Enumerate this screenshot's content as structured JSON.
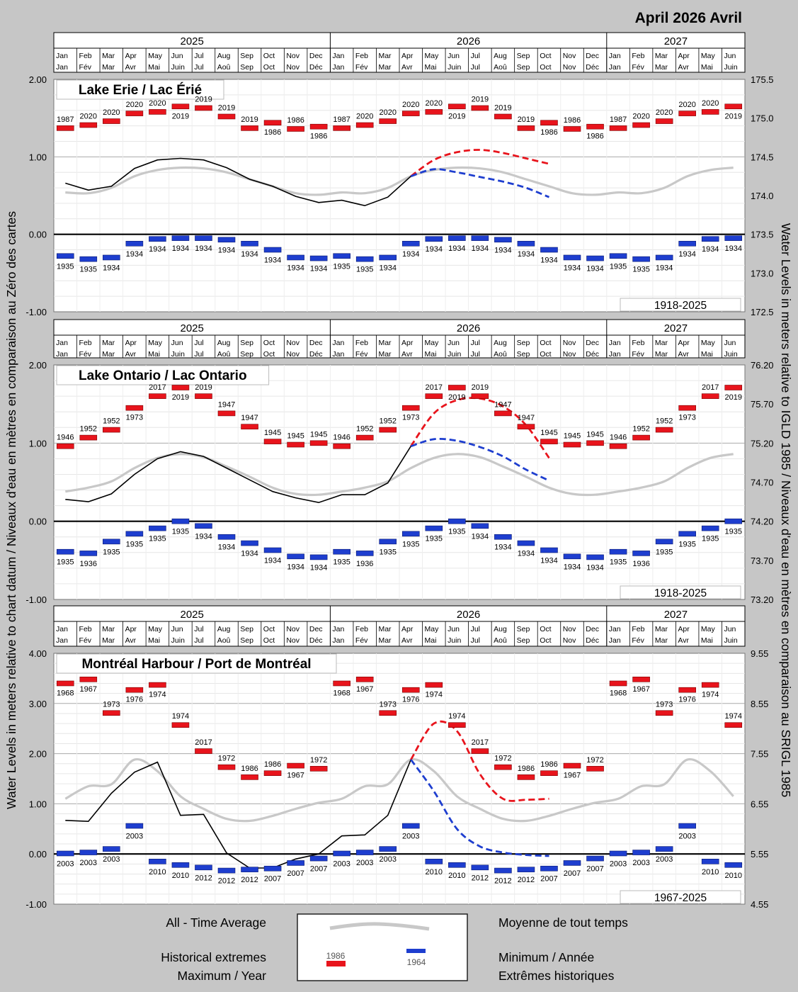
{
  "header": {
    "title": "April 2026 Avril"
  },
  "axis_titles": {
    "left": "Water Levels in meters relative to chart datum / Niveaux d'eau en mètres en comparaison au Zéro des cartes",
    "right": "Water Levels in meters relative to IGLD 1985 / Niveaux d'eau en mètres en comparaison au SRIGL 1985"
  },
  "timeline": {
    "years": [
      {
        "label": "2025",
        "months": 12
      },
      {
        "label": "2026",
        "months": 12
      },
      {
        "label": "2027",
        "months": 6
      }
    ],
    "months": [
      [
        "Jan",
        "Jan"
      ],
      [
        "Feb",
        "Fév"
      ],
      [
        "Mar",
        "Mar"
      ],
      [
        "Apr",
        "Avr"
      ],
      [
        "May",
        "Mai"
      ],
      [
        "Jun",
        "Juin"
      ],
      [
        "Jul",
        "Jul"
      ],
      [
        "Aug",
        "Aoû"
      ],
      [
        "Sep",
        "Sep"
      ],
      [
        "Oct",
        "Oct"
      ],
      [
        "Nov",
        "Nov"
      ],
      [
        "Dec",
        "Déc"
      ],
      [
        "Jan",
        "Jan"
      ],
      [
        "Feb",
        "Fév"
      ],
      [
        "Mar",
        "Mar"
      ],
      [
        "Apr",
        "Avr"
      ],
      [
        "May",
        "Mai"
      ],
      [
        "Jun",
        "Juin"
      ],
      [
        "Jul",
        "Jul"
      ],
      [
        "Aug",
        "Aoû"
      ],
      [
        "Sep",
        "Sep"
      ],
      [
        "Oct",
        "Oct"
      ],
      [
        "Nov",
        "Nov"
      ],
      [
        "Dec",
        "Déc"
      ],
      [
        "Jan",
        "Jan"
      ],
      [
        "Feb",
        "Fév"
      ],
      [
        "Mar",
        "Mar"
      ],
      [
        "Apr",
        "Avr"
      ],
      [
        "May",
        "Mai"
      ],
      [
        "Jun",
        "Juin"
      ]
    ]
  },
  "legend": {
    "avg_en": "All - Time Average",
    "avg_fr": "Moyenne de tout temps",
    "hist_en": "Historical extremes",
    "max_en": "Maximum / Year",
    "min_fr": "Minimum / Année",
    "hist_fr": "Extrêmes historiques",
    "sample_max_year": "1986",
    "sample_min_year": "1964",
    "colors": {
      "max": "#e8141c",
      "min": "#1e3ecf",
      "average": "#c8c8c8",
      "observed": "#000000"
    }
  },
  "chart_data": [
    {
      "type": "line",
      "title": "Lake Erie / Lac Érié",
      "period": "1918-2025",
      "ylim": [
        -1,
        2
      ],
      "yticks": [
        "2.00",
        "1.00",
        "0.00",
        "-1.00"
      ],
      "right_ylim": [
        172.5,
        175.5
      ],
      "right_yticks": [
        "175.5",
        "175.0",
        "174.5",
        "174.0",
        "173.5",
        "173.0",
        "172.5"
      ],
      "max_values": [
        1.37,
        1.41,
        1.46,
        1.56,
        1.58,
        1.65,
        1.63,
        1.52,
        1.37,
        1.44,
        1.36,
        1.39
      ],
      "max_years": [
        "1987",
        "2020",
        "2020",
        "2020",
        "2020",
        "2019",
        "2019",
        "2019",
        "2019",
        "1986",
        "1986",
        "1986"
      ],
      "min_values": [
        -0.28,
        -0.32,
        -0.3,
        -0.12,
        -0.06,
        -0.05,
        -0.05,
        -0.07,
        -0.12,
        -0.2,
        -0.3,
        -0.31
      ],
      "min_years": [
        "1935",
        "1935",
        "1934",
        "1934",
        "1934",
        "1934",
        "1934",
        "1934",
        "1934",
        "1934",
        "1934",
        "1934"
      ],
      "average": [
        0.54,
        0.53,
        0.6,
        0.75,
        0.83,
        0.86,
        0.85,
        0.8,
        0.71,
        0.62,
        0.53,
        0.51
      ],
      "observed": [
        0.66,
        0.57,
        0.62,
        0.85,
        0.96,
        0.98,
        0.96,
        0.86,
        0.71,
        0.62,
        0.49,
        0.41,
        0.44,
        0.37,
        0.48,
        0.75
      ],
      "forecast_high": [
        0.75,
        0.96,
        1.06,
        1.09,
        1.05,
        0.98,
        0.91
      ],
      "forecast_low": [
        0.75,
        0.84,
        0.8,
        0.74,
        0.68,
        0.6,
        0.48
      ]
    },
    {
      "type": "line",
      "title": "Lake Ontario / Lac Ontario",
      "period": "1918-2025",
      "ylim": [
        -1,
        2
      ],
      "yticks": [
        "2.00",
        "1.00",
        "0.00",
        "-1.00"
      ],
      "right_ylim": [
        73.2,
        76.2
      ],
      "right_yticks": [
        "76.20",
        "75.70",
        "75.20",
        "74.70",
        "74.20",
        "73.70",
        "73.20"
      ],
      "max_values": [
        0.96,
        1.07,
        1.17,
        1.45,
        1.6,
        1.71,
        1.6,
        1.38,
        1.21,
        1.02,
        0.98,
        1.0
      ],
      "max_years": [
        "1946",
        "1952",
        "1952",
        "1973",
        "2017",
        "2019",
        "2019",
        "1947",
        "1947",
        "1945",
        "1945",
        "1945"
      ],
      "min_values": [
        -0.39,
        -0.41,
        -0.26,
        -0.16,
        -0.09,
        0.0,
        -0.06,
        -0.2,
        -0.28,
        -0.37,
        -0.45,
        -0.46
      ],
      "min_years": [
        "1935",
        "1936",
        "1935",
        "1935",
        "1935",
        "1935",
        "1934",
        "1934",
        "1934",
        "1934",
        "1934",
        "1934"
      ],
      "average": [
        0.38,
        0.43,
        0.51,
        0.68,
        0.81,
        0.86,
        0.82,
        0.7,
        0.57,
        0.43,
        0.35,
        0.34
      ],
      "observed": [
        0.28,
        0.25,
        0.35,
        0.6,
        0.8,
        0.89,
        0.83,
        0.68,
        0.53,
        0.38,
        0.3,
        0.24,
        0.34,
        0.34,
        0.49,
        0.96
      ],
      "forecast_high": [
        0.96,
        1.38,
        1.55,
        1.57,
        1.47,
        1.23,
        0.81
      ],
      "forecast_low": [
        0.96,
        1.05,
        1.03,
        0.95,
        0.83,
        0.66,
        0.52
      ]
    },
    {
      "type": "line",
      "title": "Montréal Harbour / Port de Montréal",
      "period": "1967-2025",
      "ylim": [
        -1,
        4
      ],
      "yticks": [
        "4.00",
        "3.00",
        "2.00",
        "1.00",
        "0.00",
        "-1.00"
      ],
      "right_ylim": [
        4.55,
        9.55
      ],
      "right_yticks": [
        "9.55",
        "8.55",
        "7.55",
        "6.55",
        "5.55",
        "4.55"
      ],
      "max_values": [
        3.4,
        3.48,
        2.81,
        3.27,
        3.37,
        2.57,
        2.05,
        1.73,
        1.53,
        1.61,
        1.76,
        1.7
      ],
      "max_years": [
        "1968",
        "1967",
        "1973",
        "1976",
        "1974",
        "1974",
        "2017",
        "1972",
        "1986",
        "1986",
        "1967",
        "1972"
      ],
      "min_values": [
        0.01,
        0.03,
        0.1,
        0.56,
        -0.15,
        -0.22,
        -0.27,
        -0.33,
        -0.31,
        -0.29,
        -0.18,
        -0.09
      ],
      "min_years": [
        "2003",
        "2003",
        "2003",
        "2003",
        "2010",
        "2010",
        "2012",
        "2012",
        "2012",
        "2007",
        "2007",
        "2007"
      ],
      "average": [
        1.1,
        1.35,
        1.39,
        1.88,
        1.65,
        1.15,
        0.9,
        0.7,
        0.66,
        0.76,
        0.9,
        1.02
      ],
      "observed": [
        0.67,
        0.65,
        1.21,
        1.63,
        1.83,
        0.77,
        0.79,
        0.02,
        -0.28,
        -0.28,
        -0.1,
        0.0,
        0.36,
        0.38,
        0.77,
        1.88
      ],
      "forecast_high": [
        1.88,
        2.6,
        2.45,
        1.59,
        1.1,
        1.08,
        1.1
      ],
      "forecast_low": [
        1.88,
        1.25,
        0.5,
        0.15,
        0.03,
        -0.02,
        -0.04
      ]
    }
  ]
}
